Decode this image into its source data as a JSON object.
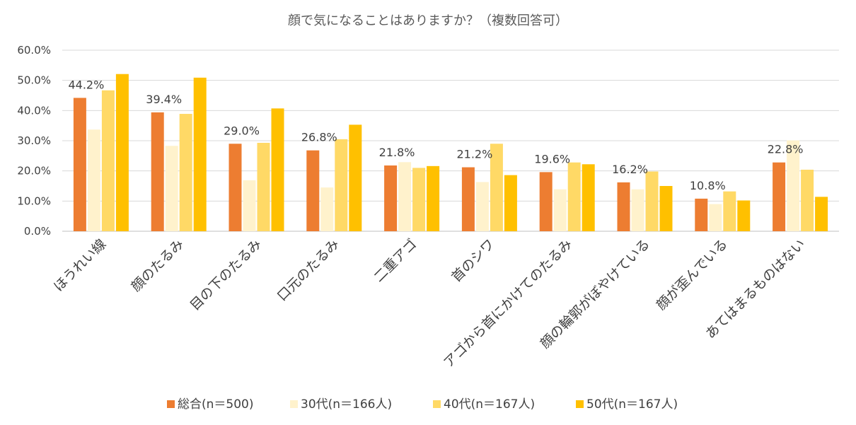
{
  "chart_data": {
    "type": "bar",
    "title": "顔で気になることはありますか？（複数回答可）",
    "categories": [
      "ほうれい線",
      "顔のたるみ",
      "目の下のたるみ",
      "口元のたるみ",
      "二重アゴ",
      "首のシワ",
      "アゴから首にかけてのたるみ",
      "顔の輪郭がぼやけている",
      "顔が歪んでいる",
      "あてはまるものはない"
    ],
    "series": [
      {
        "name": "総合(n＝500)",
        "color": "#ed7d31",
        "values": [
          44.2,
          39.4,
          29.0,
          26.8,
          21.8,
          21.2,
          19.6,
          16.2,
          10.8,
          22.8
        ]
      },
      {
        "name": "30代(n＝166人)",
        "color": "#fff2cc",
        "values": [
          33.7,
          28.3,
          16.9,
          14.5,
          22.9,
          16.3,
          13.9,
          13.9,
          9.0,
          30.1
        ]
      },
      {
        "name": "40代(n＝167人)",
        "color": "#ffd966",
        "values": [
          46.7,
          38.9,
          29.3,
          30.5,
          21.0,
          29.0,
          22.8,
          19.8,
          13.2,
          20.4
        ]
      },
      {
        "name": "50代(n＝167人)",
        "color": "#ffc000",
        "values": [
          52.1,
          50.9,
          40.7,
          35.3,
          21.6,
          18.6,
          22.2,
          15.0,
          10.2,
          11.4
        ]
      }
    ],
    "data_labels": [
      "44.2%",
      "39.4%",
      "29.0%",
      "26.8%",
      "21.8%",
      "21.2%",
      "19.6%",
      "16.2%",
      "10.8%",
      "22.8%"
    ],
    "yticks": [
      "0.0%",
      "10.0%",
      "20.0%",
      "30.0%",
      "40.0%",
      "50.0%",
      "60.0%"
    ],
    "ylim": [
      0,
      60
    ],
    "xlabel": "",
    "ylabel": "",
    "grid": true,
    "legend_position": "bottom"
  }
}
